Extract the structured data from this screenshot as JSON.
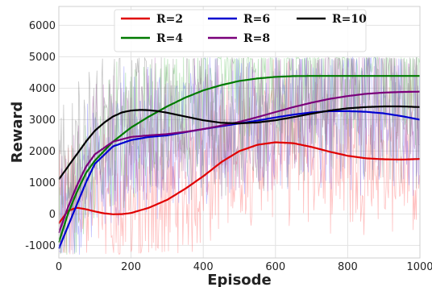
{
  "chart_data": {
    "type": "line",
    "xlabel": "Episode",
    "ylabel": "Reward",
    "xlim": [
      0,
      1000
    ],
    "ylim": [
      -1400,
      6600
    ],
    "xticks": [
      0,
      200,
      400,
      600,
      800,
      1000
    ],
    "yticks": [
      -1000,
      0,
      1000,
      2000,
      3000,
      4000,
      5000,
      6000
    ],
    "grid": true,
    "legend_position": "top-center",
    "series": [
      {
        "name": "R=2",
        "color": "#e00000",
        "noise_color": "#ff6a6a",
        "x": [
          0,
          25,
          50,
          75,
          100,
          125,
          150,
          175,
          200,
          250,
          300,
          350,
          400,
          450,
          500,
          550,
          600,
          650,
          700,
          750,
          800,
          850,
          900,
          950,
          1000
        ],
        "y": [
          -300,
          100,
          200,
          150,
          80,
          20,
          -10,
          -5,
          30,
          200,
          450,
          800,
          1200,
          1650,
          2000,
          2200,
          2280,
          2250,
          2130,
          1980,
          1850,
          1770,
          1740,
          1730,
          1750
        ]
      },
      {
        "name": "R=4",
        "color": "#007a00",
        "noise_color": "#5cbf5c",
        "x": [
          0,
          25,
          50,
          75,
          100,
          150,
          200,
          250,
          300,
          350,
          400,
          450,
          500,
          550,
          600,
          650,
          700,
          750,
          800,
          850,
          900,
          950,
          1000
        ],
        "y": [
          -900,
          0,
          700,
          1300,
          1700,
          2300,
          2750,
          3100,
          3420,
          3700,
          3930,
          4100,
          4230,
          4310,
          4360,
          4385,
          4390,
          4390,
          4390,
          4390,
          4390,
          4390,
          4390
        ]
      },
      {
        "name": "R=6",
        "color": "#0000d0",
        "noise_color": "#6f6fff",
        "x": [
          0,
          25,
          50,
          75,
          100,
          150,
          200,
          250,
          300,
          350,
          400,
          450,
          500,
          550,
          600,
          650,
          700,
          750,
          800,
          850,
          900,
          950,
          1000
        ],
        "y": [
          -1100,
          -400,
          300,
          1000,
          1600,
          2150,
          2350,
          2450,
          2500,
          2600,
          2700,
          2790,
          2880,
          2970,
          3070,
          3160,
          3230,
          3270,
          3270,
          3250,
          3200,
          3110,
          3000
        ]
      },
      {
        "name": "R=8",
        "color": "#7a007a",
        "noise_color": "#b25cb2",
        "x": [
          0,
          25,
          50,
          75,
          100,
          150,
          200,
          250,
          300,
          350,
          400,
          450,
          500,
          550,
          600,
          650,
          700,
          750,
          800,
          850,
          900,
          950,
          1000
        ],
        "y": [
          -600,
          200,
          900,
          1500,
          1900,
          2300,
          2450,
          2500,
          2540,
          2610,
          2700,
          2810,
          2930,
          3080,
          3240,
          3400,
          3540,
          3660,
          3750,
          3820,
          3860,
          3880,
          3890
        ]
      },
      {
        "name": "R=10",
        "color": "#000000",
        "noise_color": "#7a7a7a",
        "x": [
          0,
          25,
          50,
          75,
          100,
          125,
          150,
          175,
          200,
          225,
          250,
          275,
          300,
          350,
          400,
          450,
          500,
          550,
          600,
          650,
          700,
          750,
          800,
          850,
          900,
          950,
          1000
        ],
        "y": [
          1100,
          1500,
          1900,
          2300,
          2650,
          2900,
          3100,
          3230,
          3290,
          3310,
          3300,
          3270,
          3220,
          3100,
          2980,
          2900,
          2880,
          2910,
          2980,
          3080,
          3190,
          3290,
          3360,
          3400,
          3420,
          3420,
          3400
        ]
      }
    ]
  }
}
